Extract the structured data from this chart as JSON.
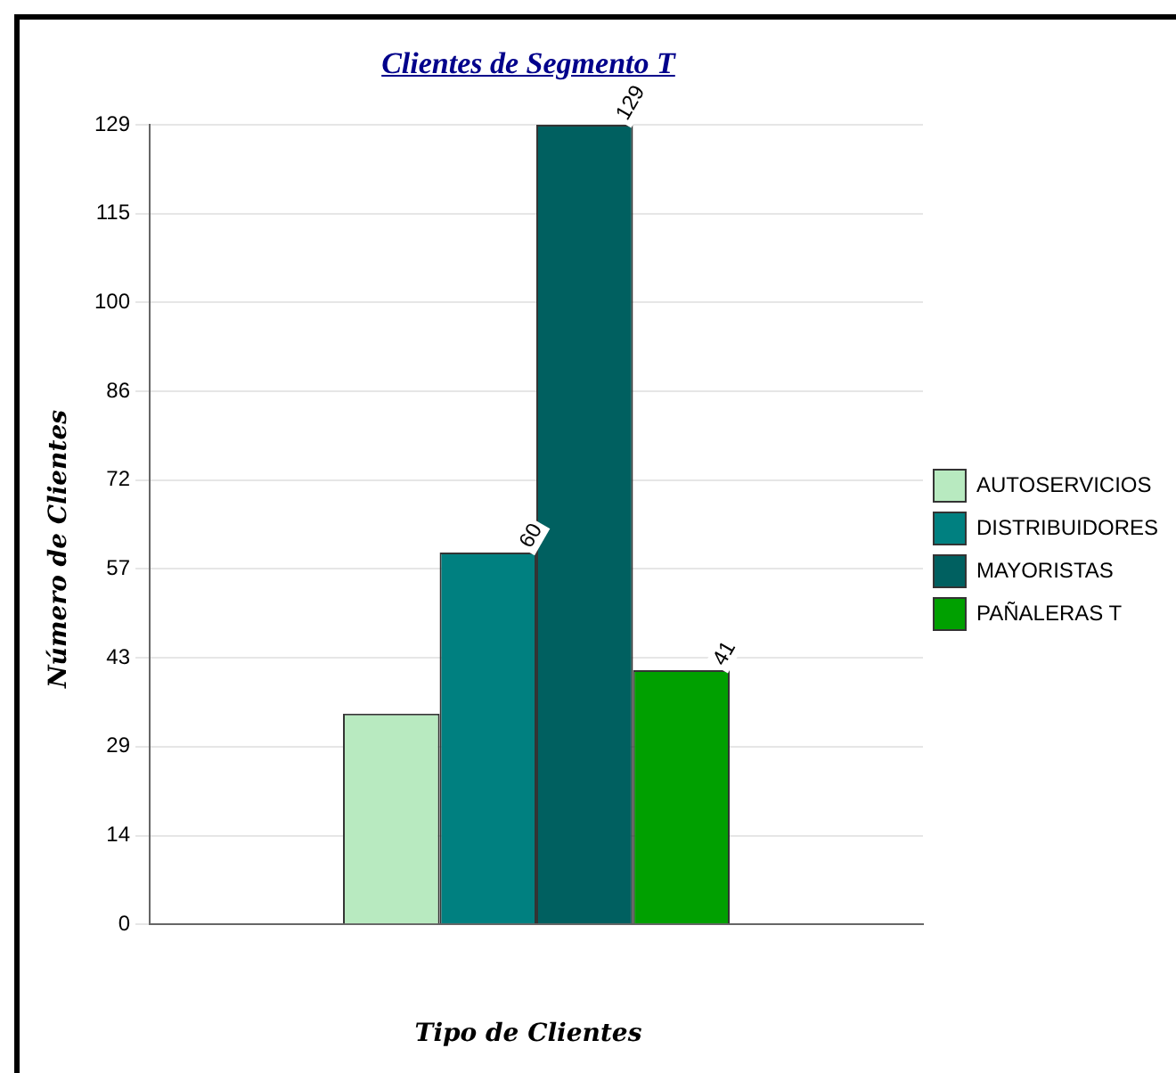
{
  "chart_data": {
    "type": "bar",
    "title": "Clientes de Segmento T",
    "xlabel": "Tipo de Clientes",
    "ylabel": "Número de Clientes",
    "categories": [
      null
    ],
    "series": [
      {
        "name": "AUTOSERVICIOS",
        "color": "#b8eac0",
        "values": [
          34
        ],
        "value_labels": [
          null
        ]
      },
      {
        "name": "DISTRIBUIDORES",
        "color": "#008080",
        "values": [
          60
        ],
        "value_labels": [
          "60"
        ]
      },
      {
        "name": "MAYORISTAS",
        "color": "#006060",
        "values": [
          129
        ],
        "value_labels": [
          "129"
        ]
      },
      {
        "name": "PAÑALERAS T",
        "color": "#00a000",
        "values": [
          41
        ],
        "value_labels": [
          "41"
        ]
      }
    ],
    "ylim": [
      0,
      129
    ],
    "yticks": [
      0,
      {
        "value": 14.33,
        "label": "14"
      },
      {
        "value": 28.67,
        "label": "29"
      },
      43,
      {
        "value": 57.33,
        "label": "57"
      },
      {
        "value": 71.67,
        "label": "72"
      },
      86,
      {
        "value": 100.33,
        "label": "100"
      },
      {
        "value": 114.67,
        "label": "115"
      },
      129
    ],
    "grid": "y",
    "legend": "right"
  }
}
